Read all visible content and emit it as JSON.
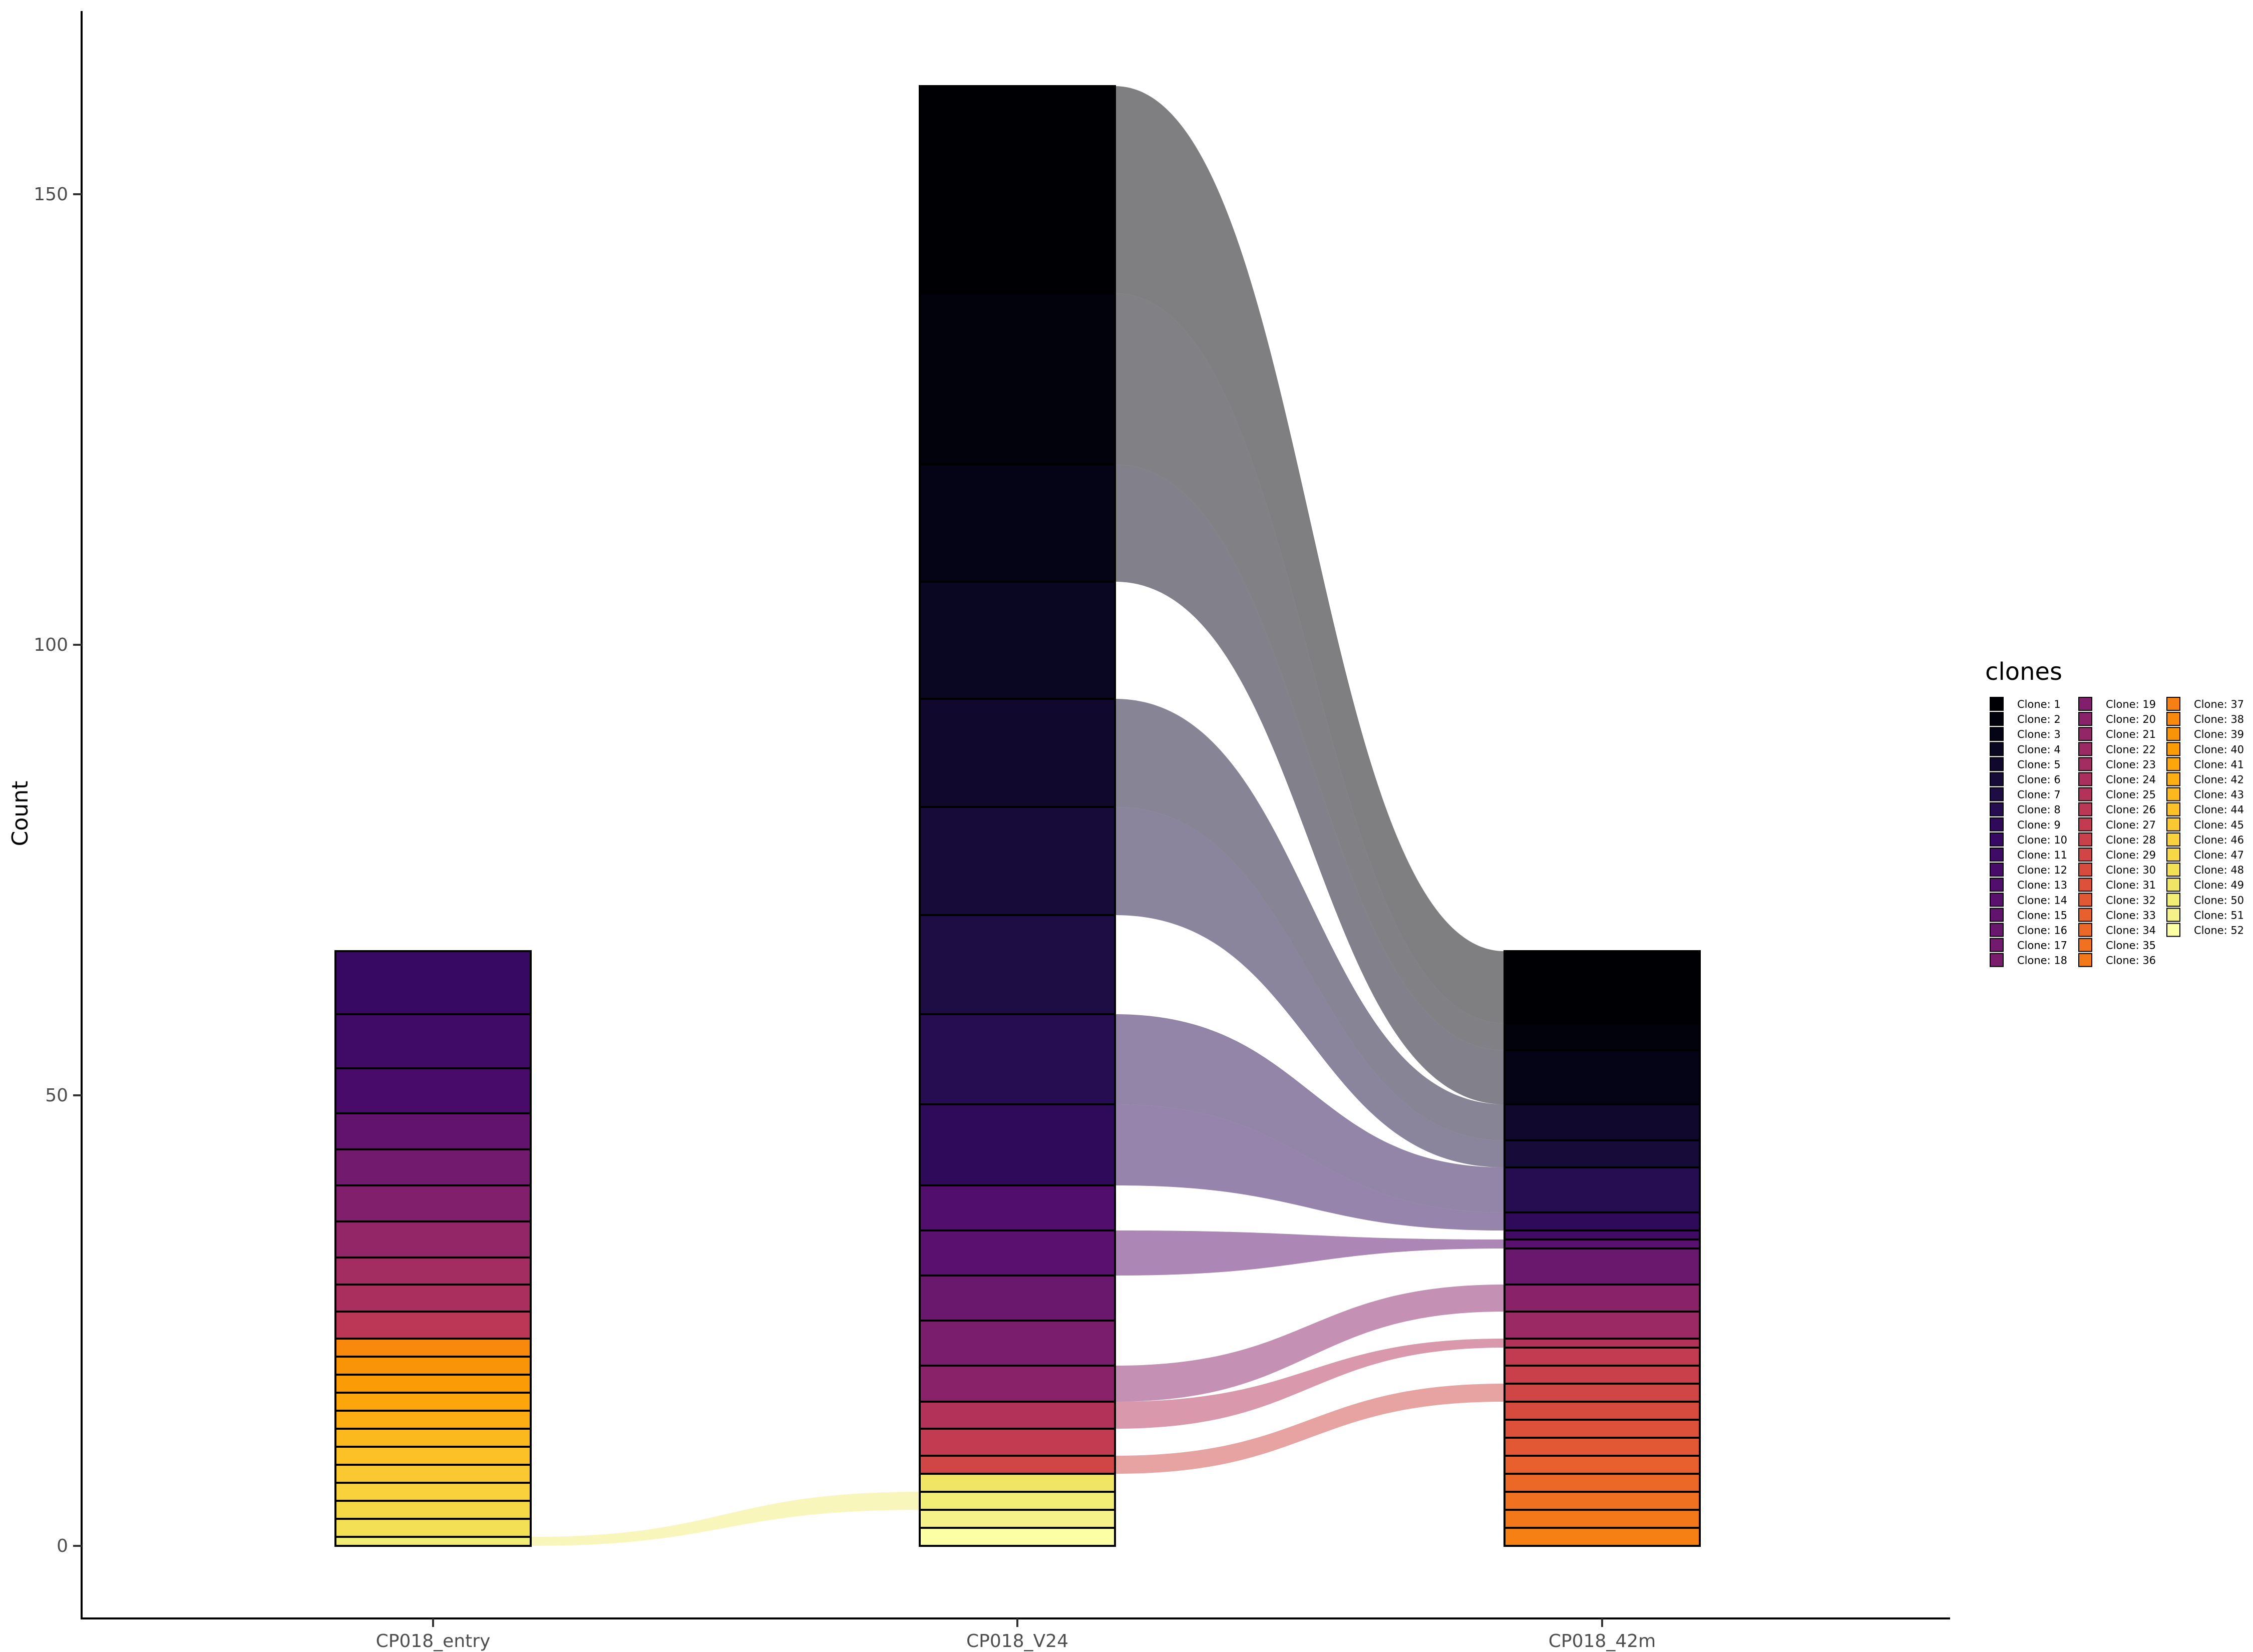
{
  "chart_data": {
    "type": "alluvial",
    "xlabel": "",
    "ylabel": "Count",
    "ylim": [
      -8,
      170
    ],
    "yticks": [
      0,
      50,
      100,
      150
    ],
    "grid": false,
    "legend": {
      "title": "clones",
      "position": "right",
      "columns": 3,
      "entries": [
        "Clone: 1",
        "Clone: 2",
        "Clone: 3",
        "Clone: 4",
        "Clone: 5",
        "Clone: 6",
        "Clone: 7",
        "Clone: 8",
        "Clone: 9",
        "Clone: 10",
        "Clone: 11",
        "Clone: 12",
        "Clone: 13",
        "Clone: 14",
        "Clone: 15",
        "Clone: 16",
        "Clone: 17",
        "Clone: 18",
        "Clone: 19",
        "Clone: 20",
        "Clone: 21",
        "Clone: 22",
        "Clone: 23",
        "Clone: 24",
        "Clone: 25",
        "Clone: 26",
        "Clone: 27",
        "Clone: 28",
        "Clone: 29",
        "Clone: 30",
        "Clone: 31",
        "Clone: 32",
        "Clone: 33",
        "Clone: 34",
        "Clone: 35",
        "Clone: 36",
        "Clone: 37",
        "Clone: 38",
        "Clone: 39",
        "Clone: 40",
        "Clone: 41",
        "Clone: 42",
        "Clone: 43",
        "Clone: 44",
        "Clone: 45",
        "Clone: 46",
        "Clone: 47",
        "Clone: 48",
        "Clone: 49",
        "Clone: 50",
        "Clone: 51",
        "Clone: 52"
      ]
    },
    "palette": [
      "#000004",
      "#02020c",
      "#050417",
      "#0a0722",
      "#10092d",
      "#160b39",
      "#1e0c45",
      "#260c51",
      "#2f0a5b",
      "#380962",
      "#400a67",
      "#490b6a",
      "#510e6c",
      "#59106e",
      "#61136e",
      "#6a176e",
      "#721a6e",
      "#7a1d6d",
      "#821f6c",
      "#8a226a",
      "#932667",
      "#9b2964",
      "#a32c61",
      "#ab2f5e",
      "#b3325a",
      "#bb3755",
      "#c23b50",
      "#ca404a",
      "#d04545",
      "#d74b3f",
      "#dd513a",
      "#e25834",
      "#e8602d",
      "#ec6826",
      "#f0711f",
      "#f37819",
      "#f68013",
      "#f8890c",
      "#fa9407",
      "#fb9b06",
      "#fca60c",
      "#fcae12",
      "#fcb91d",
      "#fbc127",
      "#fac932",
      "#f8d13d",
      "#f6d746",
      "#f3e055",
      "#f1e664",
      "#f2ed75",
      "#f6f28a",
      "#fcffa4"
    ],
    "categories": [
      "CP018_entry",
      "CP018_V24",
      "CP018_42m"
    ],
    "stacks": {
      "CP018_entry": [
        {
          "clone": 10,
          "value": 7
        },
        {
          "clone": 11,
          "value": 6
        },
        {
          "clone": 12,
          "value": 5
        },
        {
          "clone": 15,
          "value": 4
        },
        {
          "clone": 17,
          "value": 4
        },
        {
          "clone": 19,
          "value": 4
        },
        {
          "clone": 21,
          "value": 4
        },
        {
          "clone": 23,
          "value": 3
        },
        {
          "clone": 24,
          "value": 3
        },
        {
          "clone": 26,
          "value": 3
        },
        {
          "clone": 38,
          "value": 2
        },
        {
          "clone": 39,
          "value": 2
        },
        {
          "clone": 40,
          "value": 2
        },
        {
          "clone": 41,
          "value": 2
        },
        {
          "clone": 42,
          "value": 2
        },
        {
          "clone": 43,
          "value": 2
        },
        {
          "clone": 44,
          "value": 2
        },
        {
          "clone": 45,
          "value": 2
        },
        {
          "clone": 46,
          "value": 2
        },
        {
          "clone": 47,
          "value": 2
        },
        {
          "clone": 48,
          "value": 2
        },
        {
          "clone": 50,
          "value": 1
        }
      ],
      "CP018_V24": [
        {
          "clone": 1,
          "value": 23
        },
        {
          "clone": 2,
          "value": 19
        },
        {
          "clone": 3,
          "value": 13
        },
        {
          "clone": 4,
          "value": 13
        },
        {
          "clone": 5,
          "value": 12
        },
        {
          "clone": 6,
          "value": 12
        },
        {
          "clone": 7,
          "value": 11
        },
        {
          "clone": 8,
          "value": 10
        },
        {
          "clone": 9,
          "value": 9
        },
        {
          "clone": 13,
          "value": 5
        },
        {
          "clone": 14,
          "value": 5
        },
        {
          "clone": 16,
          "value": 5
        },
        {
          "clone": 18,
          "value": 5
        },
        {
          "clone": 20,
          "value": 4
        },
        {
          "clone": 25,
          "value": 3
        },
        {
          "clone": 27,
          "value": 3
        },
        {
          "clone": 29,
          "value": 2
        },
        {
          "clone": 49,
          "value": 2
        },
        {
          "clone": 50,
          "value": 2
        },
        {
          "clone": 51,
          "value": 2
        },
        {
          "clone": 52,
          "value": 2
        }
      ],
      "CP018_42m": [
        {
          "clone": 1,
          "value": 8
        },
        {
          "clone": 2,
          "value": 3
        },
        {
          "clone": 3,
          "value": 6
        },
        {
          "clone": 5,
          "value": 4
        },
        {
          "clone": 6,
          "value": 3
        },
        {
          "clone": 8,
          "value": 5
        },
        {
          "clone": 9,
          "value": 2
        },
        {
          "clone": 11,
          "value": 1
        },
        {
          "clone": 14,
          "value": 1
        },
        {
          "clone": 16,
          "value": 4
        },
        {
          "clone": 20,
          "value": 3
        },
        {
          "clone": 22,
          "value": 3
        },
        {
          "clone": 25,
          "value": 1
        },
        {
          "clone": 27,
          "value": 2
        },
        {
          "clone": 28,
          "value": 2
        },
        {
          "clone": 29,
          "value": 2
        },
        {
          "clone": 30,
          "value": 2
        },
        {
          "clone": 31,
          "value": 2
        },
        {
          "clone": 32,
          "value": 2
        },
        {
          "clone": 33,
          "value": 2
        },
        {
          "clone": 34,
          "value": 2
        },
        {
          "clone": 35,
          "value": 2
        },
        {
          "clone": 36,
          "value": 2
        },
        {
          "clone": 37,
          "value": 2
        }
      ]
    },
    "flows": [
      {
        "clone": 50,
        "from": "CP018_entry",
        "to": "CP018_V24"
      },
      {
        "clone": 1,
        "from": "CP018_V24",
        "to": "CP018_42m"
      },
      {
        "clone": 2,
        "from": "CP018_V24",
        "to": "CP018_42m"
      },
      {
        "clone": 3,
        "from": "CP018_V24",
        "to": "CP018_42m"
      },
      {
        "clone": 5,
        "from": "CP018_V24",
        "to": "CP018_42m"
      },
      {
        "clone": 6,
        "from": "CP018_V24",
        "to": "CP018_42m"
      },
      {
        "clone": 8,
        "from": "CP018_V24",
        "to": "CP018_42m"
      },
      {
        "clone": 9,
        "from": "CP018_V24",
        "to": "CP018_42m"
      },
      {
        "clone": 14,
        "from": "CP018_V24",
        "to": "CP018_42m"
      },
      {
        "clone": 20,
        "from": "CP018_V24",
        "to": "CP018_42m"
      },
      {
        "clone": 25,
        "from": "CP018_V24",
        "to": "CP018_42m"
      },
      {
        "clone": 29,
        "from": "CP018_V24",
        "to": "CP018_42m"
      }
    ]
  }
}
